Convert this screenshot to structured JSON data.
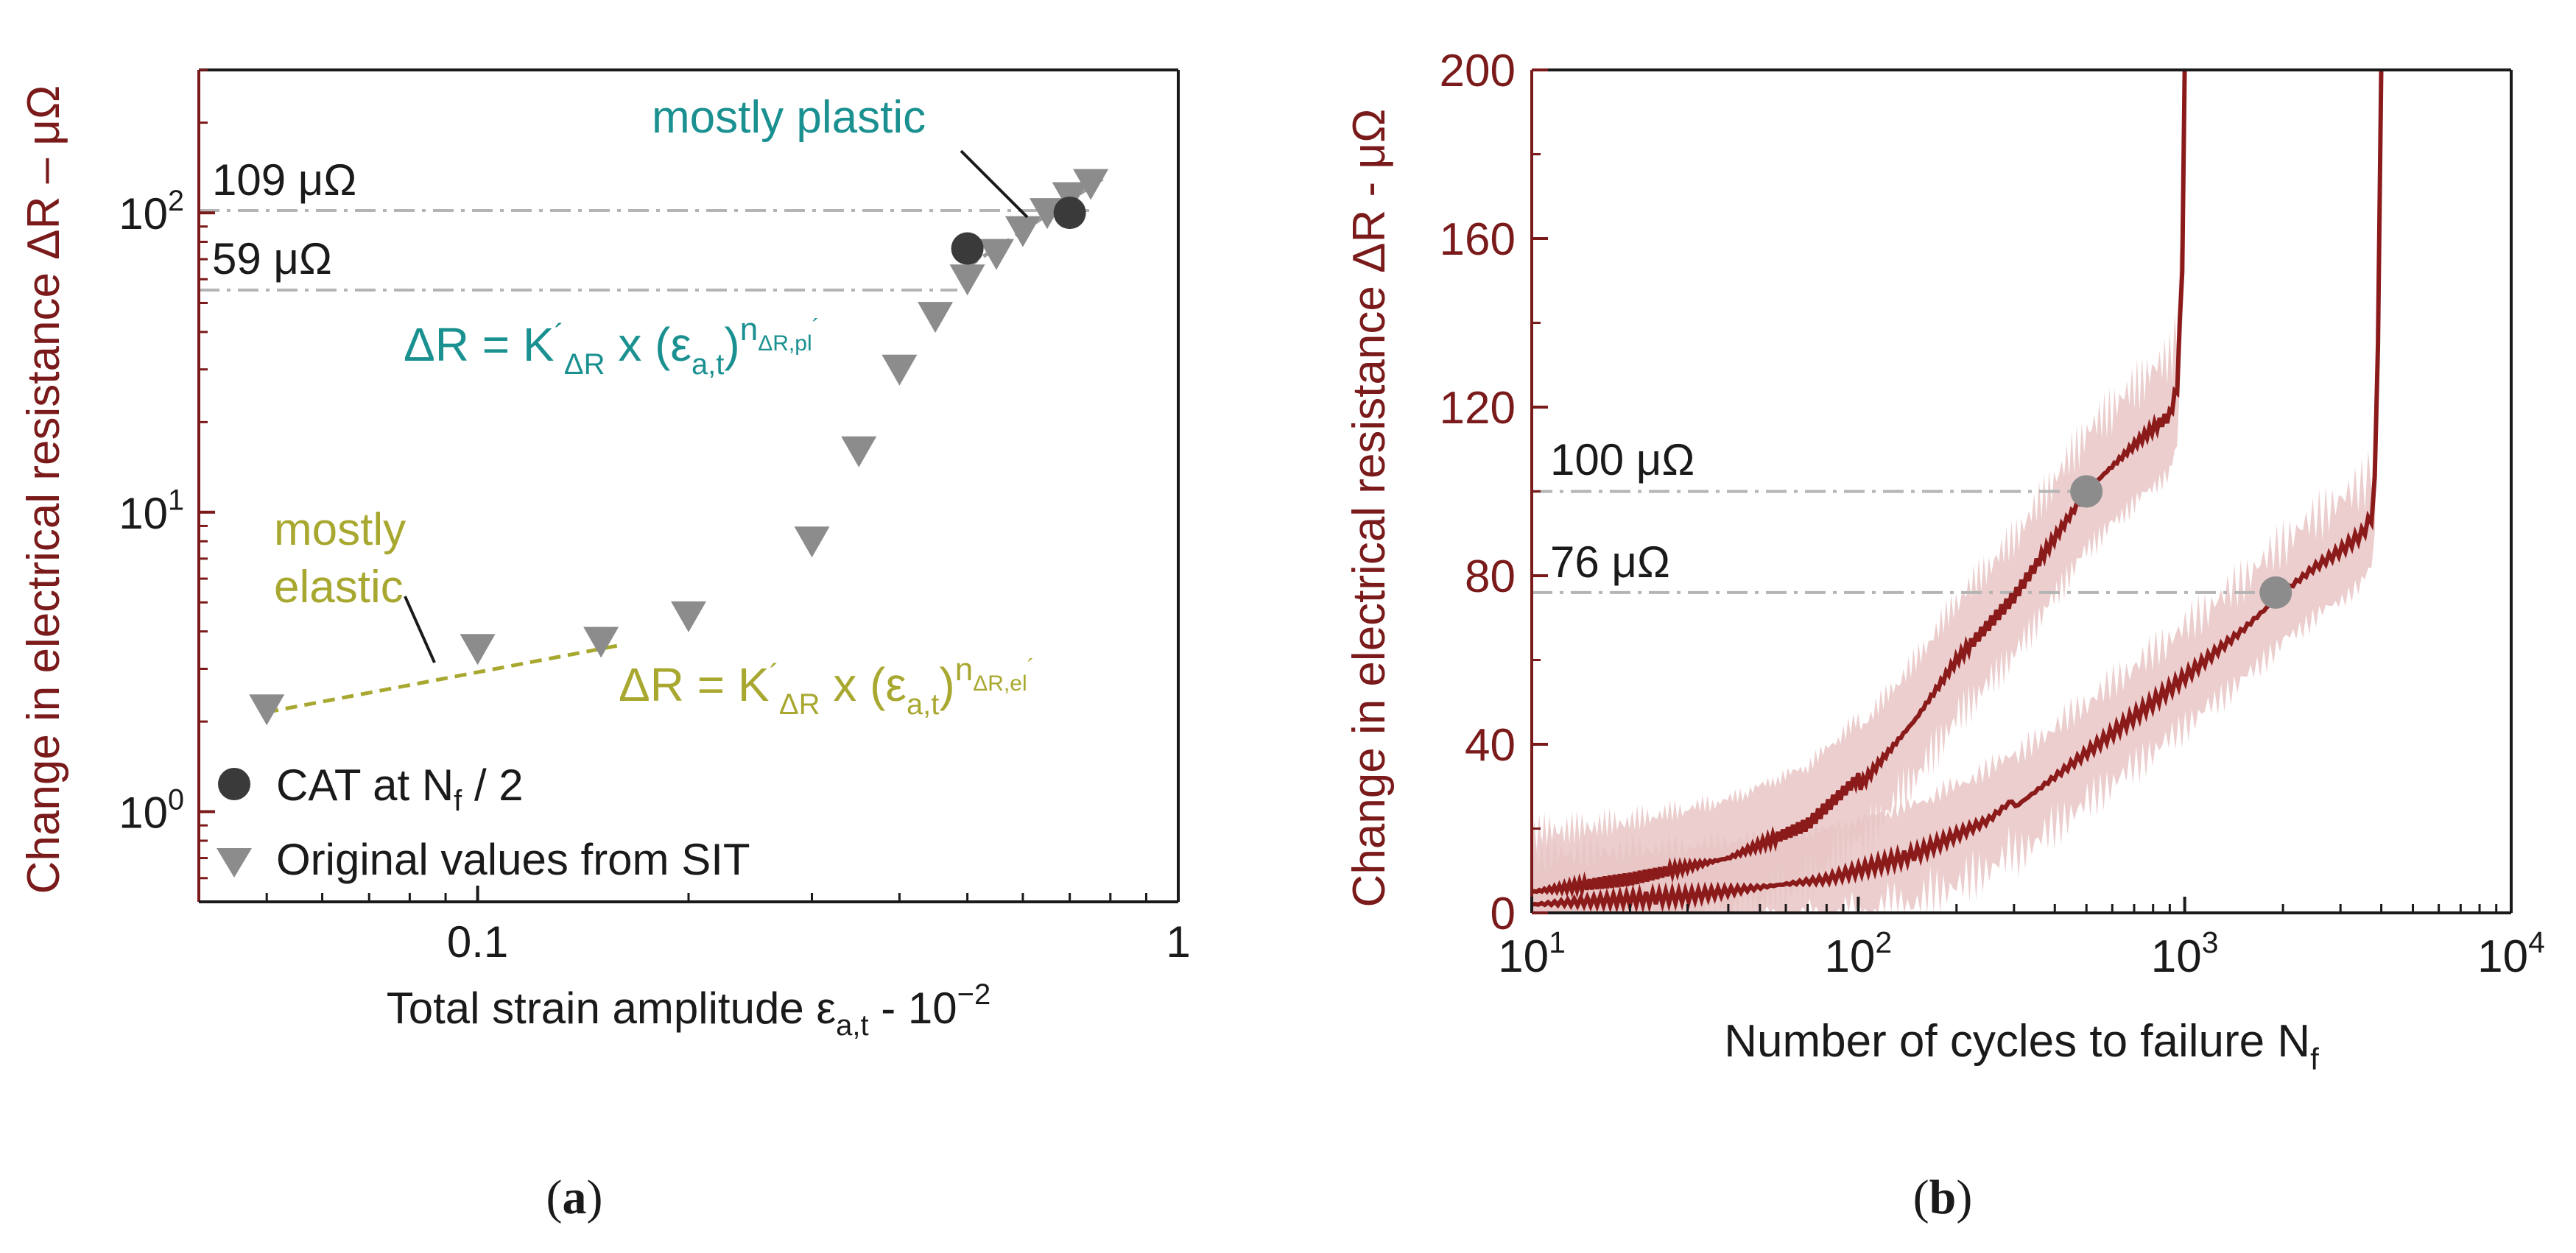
{
  "colors": {
    "axis_dark_red": "#7a1a1a",
    "teal": "#1a9090",
    "olive": "#a8a830",
    "gray_marker": "#8c8c8c",
    "dark_marker": "#3a3a3a",
    "curve": "#8b1a1a",
    "band": "#e9c6c6",
    "dash_line": "#b4b4b4"
  },
  "chart_data": [
    {
      "panel": "a",
      "type": "scatter",
      "caption_letter": "a",
      "xscale": "log",
      "yscale": "log",
      "xlim": [
        0.04,
        1.0
      ],
      "ylim": [
        0.5,
        300
      ],
      "xticks": [
        {
          "value": 0.1,
          "label": "0.1"
        },
        {
          "value": 1,
          "label": "1"
        }
      ],
      "yticks": [
        {
          "value": 1,
          "base": "10",
          "exp": "0"
        },
        {
          "value": 10,
          "base": "10",
          "exp": "1"
        },
        {
          "value": 100,
          "base": "10",
          "exp": "2"
        }
      ],
      "xlabel": {
        "pre": "Total strain amplitude ε",
        "sub": "a,t",
        "post": " - 10",
        "sup": "−2"
      },
      "ylabel": "Change in electrical resistance ΔR – μΩ",
      "series": [
        {
          "name": "CAT at N",
          "legend_sub": "f",
          "legend_post": " / 2",
          "marker": "circle",
          "x": [
            0.5,
            0.7
          ],
          "y": [
            76,
            100
          ]
        },
        {
          "name": "Original values from SIT",
          "marker": "triangle-down",
          "x": [
            0.05,
            0.1,
            0.15,
            0.2,
            0.3,
            0.35,
            0.4,
            0.45,
            0.5,
            0.55,
            0.6,
            0.65,
            0.7,
            0.75
          ],
          "y": [
            2.2,
            3.5,
            3.7,
            4.5,
            8.0,
            16,
            30,
            45,
            60,
            73,
            87,
            100,
            113,
            125
          ]
        }
      ],
      "reference_lines": [
        {
          "y": 109,
          "label": "109 μΩ"
        },
        {
          "y": 59,
          "label": "59 μΩ"
        }
      ],
      "fits": [
        {
          "name": "elastic",
          "x": [
            0.05,
            0.16
          ],
          "y": [
            2.15,
            3.6
          ]
        },
        {
          "name": "plastic",
          "x": [
            0.5,
            0.78
          ],
          "y": [
            66,
            130
          ]
        }
      ],
      "annotations": {
        "plastic_label": "mostly plastic",
        "elastic_label_1": "mostly",
        "elastic_label_2": "elastic",
        "eq_plastic": {
          "main": "ΔR = K",
          "prime": "´",
          "sub": "ΔR",
          "mid": " x (ε",
          "sub2": "a,t",
          "close": ")",
          "sup": "n",
          "supsub": "ΔR,pl",
          "supprime": "´"
        },
        "eq_elastic": {
          "main": "ΔR = K",
          "prime": "´",
          "sub": "ΔR",
          "mid": " x (ε",
          "sub2": "a,t",
          "close": ")",
          "sup": "n",
          "supsub": "ΔR,el",
          "supprime": "´"
        }
      }
    },
    {
      "panel": "b",
      "type": "line",
      "caption_letter": "b",
      "xscale": "log",
      "yscale": "linear",
      "xlim": [
        10,
        10000
      ],
      "ylim": [
        0,
        200
      ],
      "xticks": [
        {
          "value": 10,
          "base": "10",
          "exp": "1"
        },
        {
          "value": 100,
          "base": "10",
          "exp": "2"
        },
        {
          "value": 1000,
          "base": "10",
          "exp": "3"
        },
        {
          "value": 10000,
          "base": "10",
          "exp": "4"
        }
      ],
      "yticks": [
        0,
        40,
        80,
        120,
        160,
        200
      ],
      "xlabel": {
        "pre": "Number of cycles to failure N",
        "sub": "f"
      },
      "ylabel": "Change in electrical resistance ΔR - μΩ",
      "series": [
        {
          "name": "curve-1",
          "x": [
            10,
            20,
            40,
            70,
            100,
            101,
            150,
            200,
            300,
            400,
            500,
            600,
            700,
            800,
            900,
            950,
            990,
            1000
          ],
          "y": [
            5,
            8,
            13,
            21,
            32,
            30,
            46,
            60,
            75,
            89,
            100,
            106,
            111,
            115,
            118,
            125,
            160,
            200
          ]
        },
        {
          "name": "curve-2",
          "x": [
            10,
            30,
            80,
            150,
            250,
            300,
            301,
            500,
            800,
            1000,
            1500,
            2000,
            2500,
            3000,
            3500,
            3800,
            3900,
            4000
          ],
          "y": [
            2,
            4,
            8,
            14,
            22,
            27,
            25,
            38,
            50,
            56,
            67,
            76,
            82,
            86,
            90,
            95,
            130,
            200
          ]
        }
      ],
      "markers": [
        {
          "x": 500,
          "y": 100
        },
        {
          "x": 1900,
          "y": 76
        }
      ],
      "reference_lines": [
        {
          "y": 100,
          "x_end": 500,
          "label": "100 μΩ"
        },
        {
          "y": 76,
          "x_end": 1900,
          "label": "76 μΩ"
        }
      ]
    }
  ]
}
